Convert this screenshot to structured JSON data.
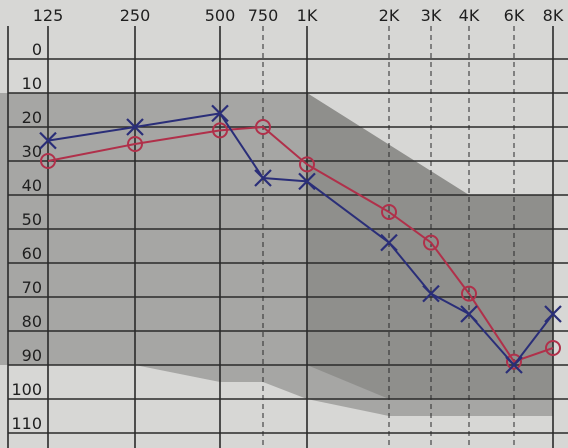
{
  "chart_data": {
    "type": "line",
    "title": "",
    "xlabel": "",
    "ylabel": "",
    "x_tick_labels": [
      "125",
      "250",
      "500",
      "750",
      "1K",
      "2K",
      "3K",
      "4K",
      "6K",
      "8K"
    ],
    "x_tick_values": [
      125,
      250,
      500,
      750,
      1000,
      2000,
      3000,
      4000,
      6000,
      8000
    ],
    "x_scale": "log",
    "y_tick_labels": [
      "0",
      "10",
      "20",
      "30",
      "40",
      "50",
      "60",
      "70",
      "80",
      "90",
      "100",
      "110"
    ],
    "ylim": [
      -5,
      115
    ],
    "y_inverted": true,
    "grid": true,
    "series": [
      {
        "marker": "o",
        "color": "#b0304a",
        "points": [
          {
            "x": 125,
            "y": 30
          },
          {
            "x": 250,
            "y": 25
          },
          {
            "x": 500,
            "y": 21
          },
          {
            "x": 750,
            "y": 20
          },
          {
            "x": 1000,
            "y": 31
          },
          {
            "x": 2000,
            "y": 45
          },
          {
            "x": 3000,
            "y": 54
          },
          {
            "x": 4000,
            "y": 69
          },
          {
            "x": 6000,
            "y": 89
          },
          {
            "x": 8000,
            "y": 85
          }
        ]
      },
      {
        "marker": "x",
        "color": "#2a2e78",
        "points": [
          {
            "x": 125,
            "y": 24
          },
          {
            "x": 250,
            "y": 20
          },
          {
            "x": 500,
            "y": 16
          },
          {
            "x": 750,
            "y": 35
          },
          {
            "x": 1000,
            "y": 36
          },
          {
            "x": 2000,
            "y": 54
          },
          {
            "x": 3000,
            "y": 69
          },
          {
            "x": 4000,
            "y": 75
          },
          {
            "x": 6000,
            "y": 90
          },
          {
            "x": 8000,
            "y": 75
          }
        ]
      }
    ],
    "shaded_regions": [
      {
        "name": "upper-band",
        "shade": "#a3a3a1",
        "top": [
          {
            "x": 125,
            "y": 10
          },
          {
            "x": 1000,
            "y": 10
          },
          {
            "x": 4000,
            "y": 40
          },
          {
            "x": 8000,
            "y": 40
          }
        ],
        "bottom": [
          {
            "x": 125,
            "y": 90
          },
          {
            "x": 250,
            "y": 90
          },
          {
            "x": 500,
            "y": 95
          },
          {
            "x": 750,
            "y": 95
          },
          {
            "x": 1000,
            "y": 100
          },
          {
            "x": 2000,
            "y": 105
          },
          {
            "x": 8000,
            "y": 105
          }
        ]
      },
      {
        "name": "speech-banana",
        "shade": "#8d8d8b",
        "top": [
          {
            "x": 1000,
            "y": 10
          },
          {
            "x": 4000,
            "y": 40
          },
          {
            "x": 8000,
            "y": 40
          }
        ],
        "bottom": [
          {
            "x": 8000,
            "y": 100
          },
          {
            "x": 2000,
            "y": 100
          },
          {
            "x": 1000,
            "y": 90
          }
        ]
      }
    ]
  },
  "colors": {
    "paper": "#d7d7d5",
    "grid": "#2a2a2a",
    "band_light": "#a3a3a1",
    "band_dark": "#8d8d8b"
  }
}
